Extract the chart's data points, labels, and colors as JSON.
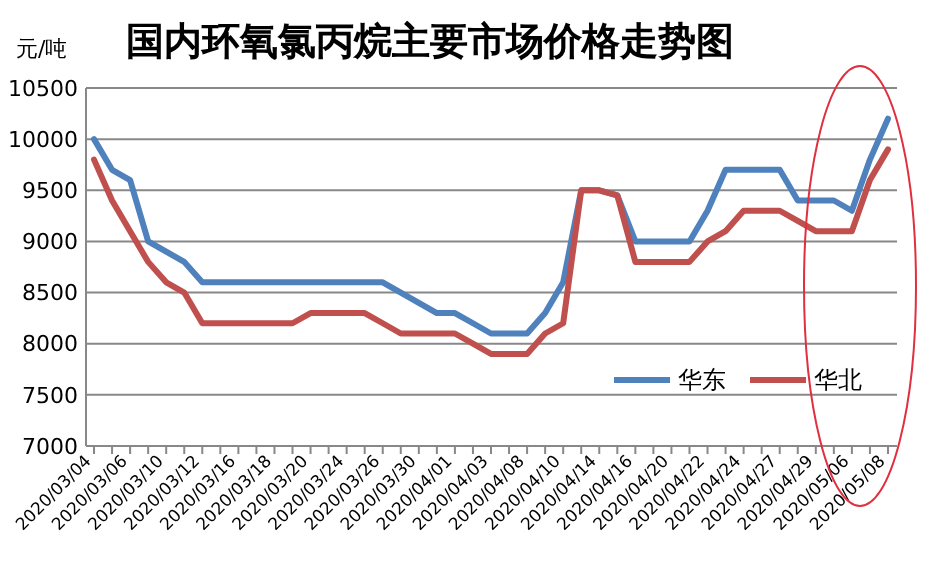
{
  "chart_data": {
    "type": "line",
    "title": "国内环氧氯丙烷主要市场价格走势图",
    "ylabel": "元/吨",
    "categories": [
      "2020/03/04",
      null,
      "2020/03/06",
      null,
      "2020/03/10",
      null,
      "2020/03/12",
      null,
      "2020/03/16",
      null,
      "2020/03/18",
      null,
      "2020/03/20",
      null,
      "2020/03/24",
      null,
      "2020/03/26",
      null,
      "2020/03/30",
      null,
      "2020/04/01",
      null,
      "2020/04/03",
      null,
      "2020/04/08",
      null,
      "2020/04/10",
      null,
      "2020/04/14",
      null,
      "2020/04/16",
      null,
      "2020/04/20",
      null,
      "2020/04/22",
      null,
      "2020/04/24",
      null,
      "2020/04/27",
      null,
      "2020/04/29",
      null,
      "2020/05/06",
      null,
      "2020/05/08"
    ],
    "series": [
      {
        "name": "华东",
        "color": "#4f81bd",
        "values": [
          10000,
          9700,
          9600,
          9000,
          8900,
          8800,
          8600,
          8600,
          8600,
          8600,
          8600,
          8600,
          8600,
          8600,
          8600,
          8600,
          8600,
          8500,
          8400,
          8300,
          8300,
          8200,
          8100,
          8100,
          8100,
          8300,
          8600,
          9500,
          9500,
          9450,
          9000,
          9000,
          9000,
          9000,
          9300,
          9700,
          9700,
          9700,
          9700,
          9400,
          9400,
          9400,
          9300,
          9800,
          10200
        ]
      },
      {
        "name": "华北",
        "color": "#c0504d",
        "values": [
          9800,
          9400,
          9100,
          8800,
          8600,
          8500,
          8200,
          8200,
          8200,
          8200,
          8200,
          8200,
          8300,
          8300,
          8300,
          8300,
          8200,
          8100,
          8100,
          8100,
          8100,
          8000,
          7900,
          7900,
          7900,
          8100,
          8200,
          9500,
          9500,
          9450,
          8800,
          8800,
          8800,
          8800,
          9000,
          9100,
          9300,
          9300,
          9300,
          9200,
          9100,
          9100,
          9100,
          9600,
          9900
        ]
      }
    ],
    "ylim": [
      7000,
      10500
    ],
    "yticks": [
      7000,
      7500,
      8000,
      8500,
      9000,
      9500,
      10000,
      10500
    ],
    "grid": "y",
    "legend": "bottom right",
    "line_style": "solid",
    "marker": "none"
  }
}
